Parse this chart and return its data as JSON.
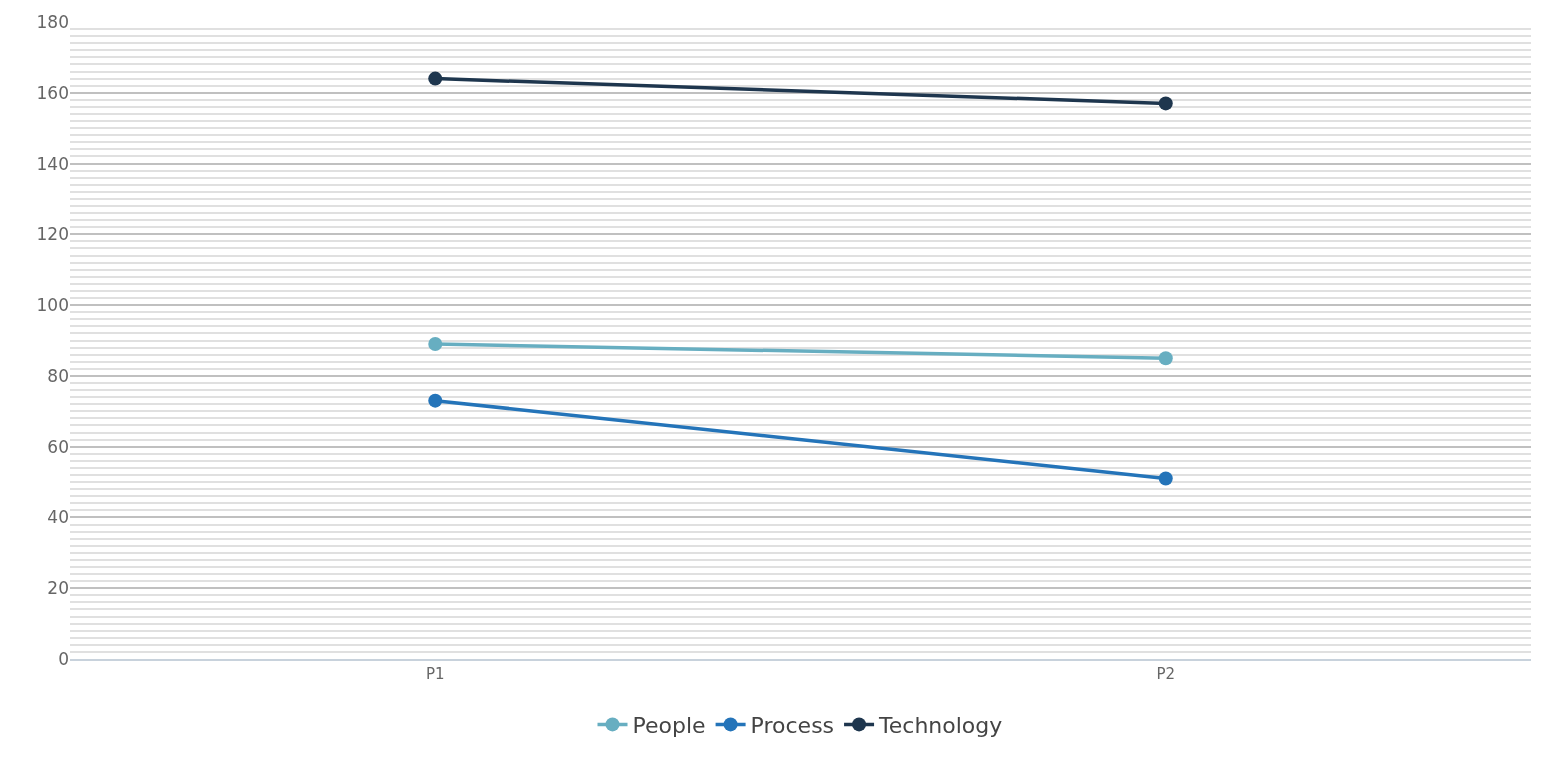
{
  "chart_data": {
    "type": "line",
    "categories": [
      "P1",
      "P2"
    ],
    "series": [
      {
        "name": "People",
        "color": "#67aec1",
        "values": [
          89,
          85
        ]
      },
      {
        "name": "Process",
        "color": "#2474b9",
        "values": [
          73,
          51
        ]
      },
      {
        "name": "Technology",
        "color": "#1e364e",
        "values": [
          164,
          157
        ]
      }
    ],
    "ylim": [
      0,
      180
    ],
    "yticks": [
      0,
      20,
      40,
      60,
      80,
      100,
      120,
      140,
      160,
      180
    ],
    "grid": "y",
    "legend": "bottom",
    "marker": "circle",
    "line_style": "solid"
  }
}
